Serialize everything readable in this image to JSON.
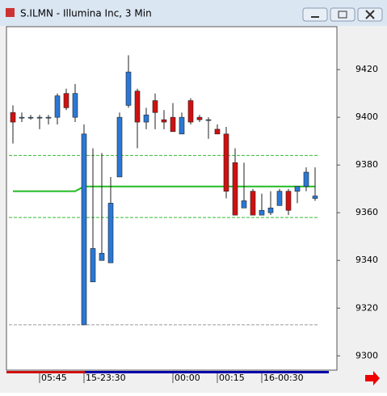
{
  "chart_data": {
    "type": "candlestick",
    "title": "S.ILMN - Illumina Inc, 3 Min",
    "categories": [
      null,
      null,
      null,
      "05:45",
      null,
      null,
      null,
      null,
      "15-23:30",
      null,
      null,
      null,
      null,
      null,
      null,
      null,
      null,
      null,
      "00:00",
      null,
      null,
      null,
      null,
      "00:15",
      null,
      null,
      null,
      null,
      "16-00:30",
      null,
      null,
      null,
      null,
      null,
      null
    ],
    "open": [
      9402,
      9400,
      9400,
      9400,
      9400,
      9400,
      9410,
      9400,
      9313,
      9331,
      9340,
      9339,
      9375,
      9405,
      9411,
      9398,
      9407,
      9399,
      9400,
      9393,
      9407,
      9400,
      9399,
      9395,
      9393,
      9381,
      9362,
      9369,
      9359,
      9360,
      9363,
      9369,
      9369,
      9371,
      9366
    ],
    "high": [
      9405,
      9402,
      9401,
      9401,
      9401,
      9410,
      9412,
      9414,
      9397,
      9387,
      9385,
      9375,
      9402,
      9426,
      9412,
      9404,
      9410,
      9403,
      9406,
      9402,
      9408,
      9401,
      9400,
      9397,
      9396,
      9387,
      9381,
      9370,
      9368,
      9369,
      9370,
      9370,
      9371,
      9379,
      9379
    ],
    "low": [
      9389,
      9398,
      9399,
      9395,
      9397,
      9397,
      9403,
      9398,
      9313,
      9331,
      9340,
      9339,
      9375,
      9404,
      9387,
      9395,
      9395,
      9395,
      9394,
      9393,
      9397,
      9398,
      9391,
      9393,
      9366,
      9359,
      9362,
      9359,
      9359,
      9359,
      9363,
      9359,
      9364,
      9369,
      9365
    ],
    "close": [
      9398,
      9400,
      9400,
      9400,
      9400,
      9409,
      9404,
      9410,
      9393,
      9345,
      9343,
      9364,
      9400,
      9419,
      9398,
      9401,
      9402,
      9398,
      9394,
      9400,
      9398,
      9399,
      9399,
      9393,
      9369,
      9359,
      9365,
      9359,
      9361,
      9362,
      9369,
      9361,
      9371,
      9377,
      9367
    ],
    "up_color": "#2a78d6",
    "down_color": "#d01010",
    "overlay_line": {
      "color": "#22bb22",
      "values": [
        9369,
        9369,
        9369,
        9369,
        9369,
        9369,
        9369,
        9369,
        9371,
        9371,
        9371,
        9371,
        9371,
        9371,
        9371,
        9371,
        9371,
        9371,
        9371,
        9371,
        9371,
        9371,
        9371,
        9371,
        9371,
        9371,
        9371,
        9371,
        9371,
        9371,
        9371,
        9371,
        9371,
        9371,
        9371
      ]
    },
    "reference_lines": [
      {
        "value": 9384,
        "color": "#33bb33"
      },
      {
        "value": 9358,
        "color": "#33bb33"
      },
      {
        "value": 9313,
        "color": "#999999"
      }
    ],
    "ylim": [
      9294,
      9438
    ],
    "yticks": [
      9300,
      9320,
      9340,
      9360,
      9380,
      9400,
      9420
    ]
  }
}
